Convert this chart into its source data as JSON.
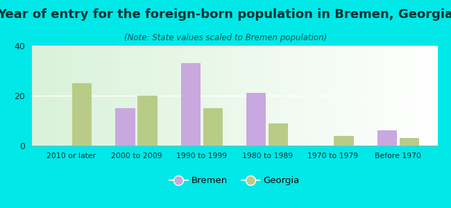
{
  "title": "Year of entry for the foreign-born population in Bremen, Georgia",
  "subtitle": "(Note: State values scaled to Bremen population)",
  "categories": [
    "2010 or later",
    "2000 to 2009",
    "1990 to 1999",
    "1980 to 1989",
    "1970 to 1979",
    "Before 1970"
  ],
  "bremen_values": [
    0,
    15,
    33,
    21,
    0,
    6
  ],
  "georgia_values": [
    25,
    20,
    15,
    9,
    4,
    3
  ],
  "bremen_color": "#c9a8e0",
  "georgia_color": "#b8cc88",
  "ylim": [
    0,
    40
  ],
  "yticks": [
    0,
    20,
    40
  ],
  "bg_outer": "#00e8e8",
  "title_fontsize": 13,
  "subtitle_fontsize": 8.5,
  "legend_fontsize": 9.5,
  "bar_width": 0.3,
  "title_color": "#003333",
  "subtitle_color": "#005555",
  "tick_color": "#003333",
  "xticklabel_fontsize": 7.8
}
